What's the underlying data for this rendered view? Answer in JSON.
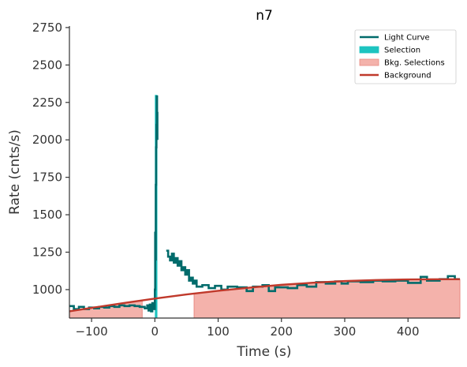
{
  "chart_data": {
    "type": "line",
    "title": "n7",
    "xlabel": "Time (s)",
    "ylabel": "Rate (cnts/s)",
    "xlim": [
      -135,
      482
    ],
    "ylim": [
      810,
      2760
    ],
    "x_ticks": [
      -100,
      0,
      100,
      200,
      300,
      400
    ],
    "x_tick_labels": [
      "−100",
      "0",
      "100",
      "200",
      "300",
      "400"
    ],
    "y_ticks": [
      1000,
      1250,
      1500,
      1750,
      2000,
      2250,
      2500,
      2750
    ],
    "y_tick_labels": [
      "1000",
      "1250",
      "1500",
      "1750",
      "2000",
      "2250",
      "2500",
      "2750"
    ],
    "grid": false,
    "legend_position": "top-right",
    "colors": {
      "light_curve": "#006b6b",
      "selection": "#1dc4c0",
      "bkg_fill": "#f4b2ab",
      "bkg_edge": "#e88a82",
      "background": "#c0392b",
      "axis": "#333333"
    },
    "legend": [
      {
        "label": "Light Curve",
        "kind": "line",
        "color": "#006b6b"
      },
      {
        "label": "Selection",
        "kind": "patch",
        "color": "#1dc4c0"
      },
      {
        "label": "Bkg. Selections",
        "kind": "patch",
        "color": "#f4b2ab"
      },
      {
        "label": "Background",
        "kind": "line",
        "color": "#c0392b"
      }
    ],
    "selection": [
      0,
      4
    ],
    "bkg_selections": [
      [
        -135,
        -20
      ],
      [
        62,
        482
      ]
    ],
    "background_fit": [
      [
        -135,
        855
      ],
      [
        -100,
        878
      ],
      [
        -50,
        910
      ],
      [
        0,
        940
      ],
      [
        50,
        968
      ],
      [
        100,
        992
      ],
      [
        150,
        1013
      ],
      [
        200,
        1032
      ],
      [
        250,
        1046
      ],
      [
        300,
        1057
      ],
      [
        350,
        1064
      ],
      [
        400,
        1068
      ],
      [
        450,
        1069
      ],
      [
        482,
        1069
      ]
    ],
    "light_curve_segments": [
      [
        [
          -135,
          890
        ],
        [
          -128,
          890
        ],
        [
          -128,
          870
        ],
        [
          -120,
          870
        ],
        [
          -120,
          885
        ],
        [
          -112,
          885
        ],
        [
          -112,
          870
        ],
        [
          -104,
          870
        ],
        [
          -104,
          880
        ],
        [
          -96,
          880
        ],
        [
          -96,
          875
        ],
        [
          -88,
          875
        ],
        [
          -88,
          885
        ],
        [
          -80,
          885
        ],
        [
          -80,
          880
        ],
        [
          -72,
          880
        ],
        [
          -72,
          890
        ],
        [
          -64,
          890
        ],
        [
          -64,
          885
        ],
        [
          -56,
          885
        ],
        [
          -56,
          895
        ],
        [
          -48,
          895
        ],
        [
          -48,
          890
        ],
        [
          -40,
          890
        ],
        [
          -40,
          895
        ],
        [
          -32,
          895
        ],
        [
          -32,
          890
        ],
        [
          -24,
          890
        ],
        [
          -24,
          885
        ],
        [
          -16,
          885
        ],
        [
          -16,
          875
        ],
        [
          -12,
          875
        ],
        [
          -12,
          895
        ],
        [
          -10,
          895
        ],
        [
          -10,
          860
        ],
        [
          -8,
          860
        ],
        [
          -8,
          900
        ],
        [
          -6,
          900
        ],
        [
          -6,
          855
        ],
        [
          -4,
          855
        ],
        [
          -4,
          910
        ],
        [
          -2,
          910
        ],
        [
          -2,
          870
        ],
        [
          0,
          870
        ],
        [
          0,
          1000
        ],
        [
          0.5,
          1000
        ],
        [
          0.5,
          1380
        ],
        [
          1,
          1380
        ],
        [
          1,
          1200
        ],
        [
          1.5,
          1200
        ],
        [
          1.5,
          1700
        ],
        [
          2,
          1700
        ],
        [
          2,
          1950
        ],
        [
          2.5,
          1950
        ],
        [
          2.5,
          2100
        ],
        [
          3,
          2100
        ],
        [
          3,
          2290
        ],
        [
          3.5,
          2290
        ],
        [
          3.5,
          2180
        ],
        [
          4,
          2180
        ],
        [
          4,
          2000
        ]
      ],
      [
        [
          18,
          1260
        ],
        [
          21,
          1260
        ],
        [
          21,
          1220
        ],
        [
          24,
          1220
        ],
        [
          24,
          1195
        ],
        [
          27,
          1195
        ],
        [
          27,
          1240
        ],
        [
          30,
          1240
        ],
        [
          30,
          1180
        ],
        [
          33,
          1180
        ],
        [
          33,
          1210
        ],
        [
          36,
          1210
        ],
        [
          36,
          1160
        ],
        [
          39,
          1160
        ],
        [
          39,
          1190
        ],
        [
          42,
          1190
        ],
        [
          42,
          1130
        ],
        [
          45,
          1130
        ],
        [
          45,
          1150
        ],
        [
          48,
          1150
        ],
        [
          48,
          1100
        ],
        [
          51,
          1100
        ],
        [
          51,
          1130
        ],
        [
          54,
          1130
        ],
        [
          54,
          1060
        ],
        [
          57,
          1060
        ],
        [
          57,
          1080
        ],
        [
          60,
          1080
        ],
        [
          60,
          1040
        ],
        [
          63,
          1040
        ],
        [
          63,
          1060
        ],
        [
          66,
          1060
        ],
        [
          66,
          1020
        ],
        [
          75,
          1020
        ],
        [
          75,
          1030
        ],
        [
          85,
          1030
        ],
        [
          85,
          1010
        ],
        [
          95,
          1010
        ],
        [
          95,
          1025
        ],
        [
          105,
          1025
        ],
        [
          105,
          1000
        ],
        [
          115,
          1000
        ],
        [
          115,
          1020
        ],
        [
          130,
          1020
        ],
        [
          130,
          1015
        ],
        [
          145,
          1015
        ],
        [
          145,
          990
        ],
        [
          155,
          990
        ],
        [
          155,
          1020
        ],
        [
          170,
          1020
        ],
        [
          170,
          1030
        ],
        [
          180,
          1030
        ],
        [
          180,
          990
        ],
        [
          190,
          990
        ],
        [
          190,
          1015
        ],
        [
          210,
          1015
        ],
        [
          210,
          1010
        ],
        [
          225,
          1010
        ],
        [
          225,
          1030
        ],
        [
          240,
          1030
        ],
        [
          240,
          1020
        ],
        [
          255,
          1020
        ],
        [
          255,
          1050
        ],
        [
          270,
          1050
        ],
        [
          270,
          1040
        ],
        [
          285,
          1040
        ],
        [
          285,
          1055
        ],
        [
          295,
          1055
        ],
        [
          295,
          1040
        ],
        [
          305,
          1040
        ],
        [
          305,
          1055
        ],
        [
          325,
          1055
        ],
        [
          325,
          1050
        ],
        [
          345,
          1050
        ],
        [
          345,
          1060
        ],
        [
          360,
          1060
        ],
        [
          360,
          1055
        ],
        [
          380,
          1055
        ],
        [
          380,
          1060
        ],
        [
          400,
          1060
        ],
        [
          400,
          1045
        ],
        [
          420,
          1045
        ],
        [
          420,
          1085
        ],
        [
          430,
          1085
        ],
        [
          430,
          1060
        ],
        [
          450,
          1060
        ],
        [
          450,
          1070
        ],
        [
          463,
          1070
        ],
        [
          463,
          1090
        ],
        [
          474,
          1090
        ],
        [
          474,
          1070
        ],
        [
          482,
          1070
        ]
      ]
    ]
  }
}
